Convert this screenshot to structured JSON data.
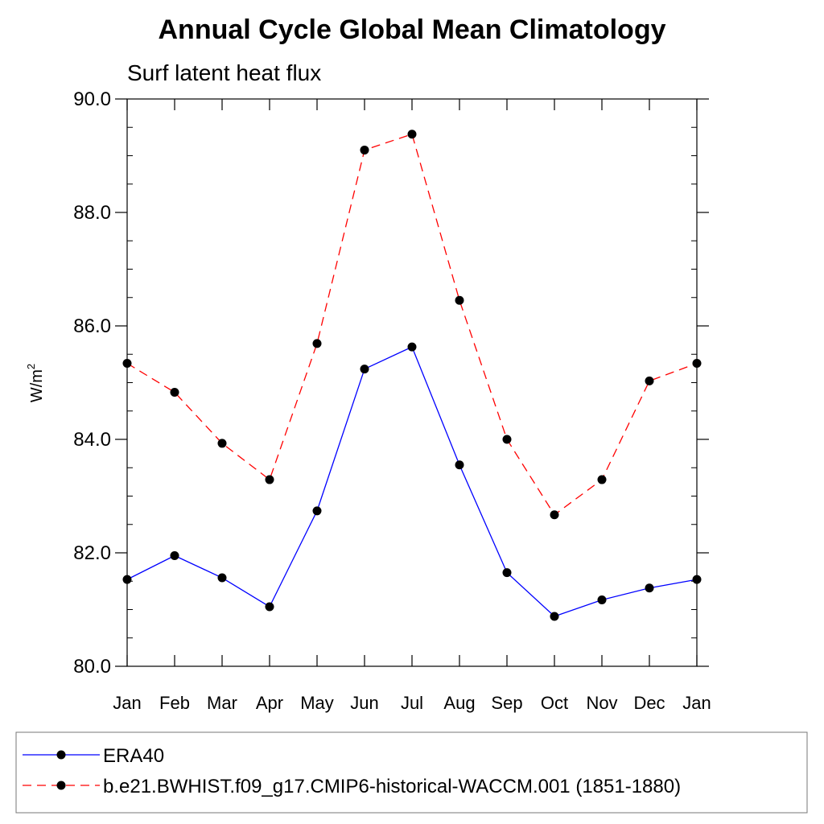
{
  "chart_data": {
    "type": "line",
    "title": "Annual Cycle Global Mean Climatology",
    "subtitle": "Surf latent heat flux",
    "ylabel": "W/m",
    "ylabel_superscript": "2",
    "xlabel": "",
    "categories": [
      "Jan",
      "Feb",
      "Mar",
      "Apr",
      "May",
      "Jun",
      "Jul",
      "Aug",
      "Sep",
      "Oct",
      "Nov",
      "Dec",
      "Jan"
    ],
    "ylim": [
      80.0,
      90.0
    ],
    "yticks": [
      "80.0",
      "82.0",
      "84.0",
      "86.0",
      "88.0",
      "90.0"
    ],
    "ytick_values": [
      80,
      82,
      84,
      86,
      88,
      90
    ],
    "y_minor_step": 0.5,
    "grid": false,
    "legend_position": "bottom",
    "series": [
      {
        "name": "ERA40",
        "color": "#0000ff",
        "dash": "solid",
        "marker": "filled-circle",
        "values": [
          81.53,
          81.95,
          81.56,
          81.05,
          82.74,
          85.24,
          85.63,
          83.55,
          81.65,
          80.88,
          81.17,
          81.38,
          81.53
        ]
      },
      {
        "name": "b.e21.BWHIST.f09_g17.CMIP6-historical-WACCM.001 (1851-1880)",
        "color": "#ff0000",
        "dash": "dashed",
        "marker": "filled-circle",
        "values": [
          85.34,
          84.83,
          83.93,
          83.29,
          85.69,
          89.1,
          89.38,
          86.45,
          84.0,
          82.67,
          83.29,
          85.03,
          85.34
        ]
      }
    ]
  }
}
